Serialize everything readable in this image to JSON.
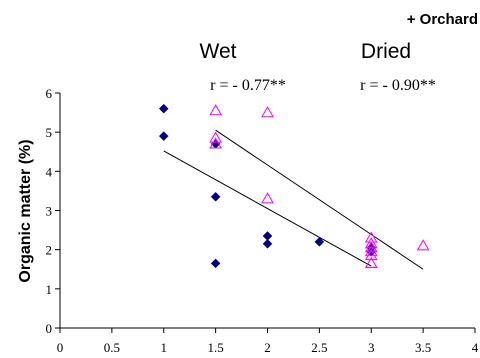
{
  "chart_data": {
    "type": "scatter",
    "title": "+ Orchard",
    "xlabel": "",
    "ylabel": "Organic matter  (%)",
    "xlim": [
      0,
      4
    ],
    "ylim": [
      0,
      6
    ],
    "xticks": [
      "0",
      "0.5",
      "1",
      "1.5",
      "2",
      "2.5",
      "3",
      "3.5",
      "4"
    ],
    "yticks": [
      "0",
      "1",
      "2",
      "3",
      "4",
      "5",
      "6"
    ],
    "grid": false,
    "series": [
      {
        "name": "Wet",
        "marker": "diamond",
        "color": "#00007f",
        "r_label": "r = - 0.77**",
        "points": [
          [
            1,
            5.6
          ],
          [
            1,
            4.9
          ],
          [
            1.5,
            4.7
          ],
          [
            1.5,
            3.35
          ],
          [
            1.5,
            1.65
          ],
          [
            2,
            2.35
          ],
          [
            2,
            2.15
          ],
          [
            2.5,
            2.2
          ],
          [
            3,
            2.05
          ],
          [
            3,
            1.95
          ]
        ],
        "trendline": [
          [
            1,
            4.52
          ],
          [
            3,
            1.58
          ]
        ]
      },
      {
        "name": "Dried",
        "marker": "triangle",
        "color": "#ff00ff",
        "r_label": "r = - 0.90**",
        "points": [
          [
            1.5,
            5.55
          ],
          [
            1.5,
            4.85
          ],
          [
            1.5,
            4.7
          ],
          [
            2,
            5.5
          ],
          [
            2,
            3.3
          ],
          [
            3,
            2.3
          ],
          [
            3,
            2.15
          ],
          [
            3,
            2.05
          ],
          [
            3,
            1.95
          ],
          [
            3,
            1.85
          ],
          [
            3,
            1.65
          ],
          [
            3.5,
            2.1
          ]
        ],
        "trendline": [
          [
            1.5,
            5.05
          ],
          [
            3.5,
            1.5
          ]
        ]
      }
    ],
    "colors": {
      "axis": "#000000",
      "trendline": "#000000"
    }
  }
}
